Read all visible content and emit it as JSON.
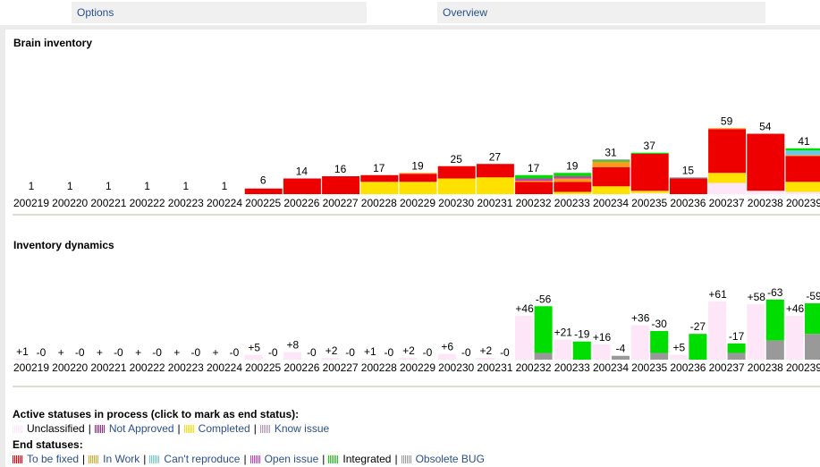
{
  "tabs": [
    {
      "label": "Options"
    },
    {
      "label": "Overview"
    }
  ],
  "sections": {
    "inventory_title": "Brain inventory",
    "dynamics_title": "Inventory dynamics"
  },
  "legend": {
    "active_heading": "Active statuses in process (click to mark as end status):",
    "end_heading": "End statuses:",
    "active": [
      {
        "label": "Unclassified",
        "color": "#fde6f8"
      },
      {
        "label": "Not Approved",
        "color": "#9b1f8a"
      },
      {
        "label": "Completed",
        "color": "#ffe100"
      },
      {
        "label": "Know issue",
        "color": "#b090d0"
      }
    ],
    "end": [
      {
        "label": "To be fixed",
        "color": "#ee0000"
      },
      {
        "label": "In Work",
        "color": "#ff9a1e"
      },
      {
        "label": "Can't reproduce",
        "color": "#66c8ee"
      },
      {
        "label": "Open issue",
        "color": "#c040c0"
      },
      {
        "label": "Integrated",
        "color": "#00dd00"
      },
      {
        "label": "Obsolete BUG",
        "color": "#999999"
      }
    ]
  },
  "chart_data": [
    {
      "type": "bar",
      "title": "Brain inventory",
      "categories": [
        "200219",
        "200220",
        "200221",
        "200222",
        "200223",
        "200224",
        "200225",
        "200226",
        "200227",
        "200228",
        "200229",
        "200230",
        "200231",
        "200232",
        "200233",
        "200234",
        "200235",
        "200236",
        "200237",
        "200238",
        "200239"
      ],
      "totals": [
        "1",
        "1",
        "1",
        "1",
        "1",
        "1",
        "6",
        "14",
        "16",
        "17",
        "19",
        "25",
        "27",
        "17",
        "19",
        "31",
        "37",
        "15",
        "59",
        "54",
        "41"
      ],
      "ylim": [
        0,
        64
      ],
      "series": [
        {
          "name": "Unclassified",
          "color": "#fde6f8",
          "values": [
            0,
            0,
            0,
            0,
            0,
            0,
            0,
            0,
            0,
            0,
            0,
            0,
            0,
            0,
            0,
            0,
            1,
            0,
            10,
            3,
            2
          ]
        },
        {
          "name": "Completed",
          "color": "#ffe100",
          "values": [
            0,
            0,
            0,
            0,
            0,
            0,
            0,
            0,
            0,
            11,
            11,
            14,
            15,
            0,
            2,
            7,
            2,
            0,
            9,
            0,
            9
          ]
        },
        {
          "name": "To be fixed",
          "color": "#ee0000",
          "values": [
            0,
            0,
            0,
            0,
            0,
            0,
            5,
            14,
            16,
            6,
            7,
            11,
            12,
            11,
            9,
            17,
            33,
            14,
            39,
            51,
            23
          ]
        },
        {
          "name": "In Work",
          "color": "#ff9a1e",
          "values": [
            0,
            0,
            0,
            0,
            0,
            0,
            0,
            0,
            0,
            0,
            1,
            0,
            0,
            1,
            3,
            5,
            0,
            0,
            1,
            0,
            1
          ]
        },
        {
          "name": "Can't reproduce",
          "color": "#66c8ee",
          "values": [
            0,
            0,
            0,
            0,
            0,
            0,
            0,
            0,
            0,
            0,
            0,
            0,
            0,
            0,
            0,
            0,
            0,
            0,
            0,
            0,
            4
          ]
        },
        {
          "name": "Open issue",
          "color": "#c040c0",
          "values": [
            0,
            0,
            0,
            0,
            0,
            0,
            0,
            0,
            0,
            0,
            0,
            0,
            0,
            2,
            2,
            0,
            0,
            0,
            0,
            0,
            0
          ]
        },
        {
          "name": "Integrated",
          "color": "#00dd00",
          "values": [
            0,
            0,
            0,
            0,
            0,
            0,
            0,
            0,
            0,
            0,
            0,
            0,
            0,
            3,
            3,
            1,
            1,
            0,
            0,
            0,
            2
          ]
        },
        {
          "name": "Obsolete BUG",
          "color": "#999999",
          "values": [
            0,
            0,
            0,
            0,
            0,
            0,
            0,
            0,
            0,
            0,
            0,
            0,
            0,
            0,
            0,
            1,
            0,
            1,
            0,
            0,
            0
          ]
        }
      ]
    },
    {
      "type": "bar",
      "title": "Inventory dynamics",
      "categories": [
        "200219",
        "200220",
        "200221",
        "200222",
        "200223",
        "200224",
        "200225",
        "200226",
        "200227",
        "200228",
        "200229",
        "200230",
        "200231",
        "200232",
        "200233",
        "200234",
        "200235",
        "200236",
        "200237",
        "200238",
        "200239"
      ],
      "added": [
        1,
        0,
        0,
        0,
        0,
        0,
        5,
        8,
        2,
        1,
        2,
        6,
        2,
        46,
        21,
        16,
        36,
        5,
        61,
        58,
        46
      ],
      "added_labels": [
        "+1",
        "+",
        "+",
        "+",
        "+",
        "+",
        "+5",
        "+8",
        "+2",
        "+1",
        "+2",
        "+6",
        "+2",
        "+46",
        "+21",
        "+16",
        "+36",
        "+5",
        "+61",
        "+58",
        "+46"
      ],
      "removed": [
        0,
        0,
        0,
        0,
        0,
        0,
        0,
        0,
        0,
        0,
        0,
        0,
        0,
        56,
        19,
        4,
        30,
        27,
        17,
        63,
        59
      ],
      "removed_labels": [
        "-0",
        "-0",
        "-0",
        "-0",
        "-0",
        "-0",
        "-0",
        "-0",
        "-0",
        "-0",
        "-0",
        "-0",
        "-0",
        "-56",
        "-19",
        "-4",
        "-30",
        "-27",
        "-17",
        "-63",
        "-59"
      ],
      "removed_obsolete": [
        0,
        0,
        0,
        0,
        0,
        0,
        0,
        0,
        0,
        0,
        0,
        0,
        0,
        7,
        0,
        4,
        7,
        0,
        7,
        20,
        27
      ],
      "ylim": [
        0,
        75
      ]
    }
  ]
}
